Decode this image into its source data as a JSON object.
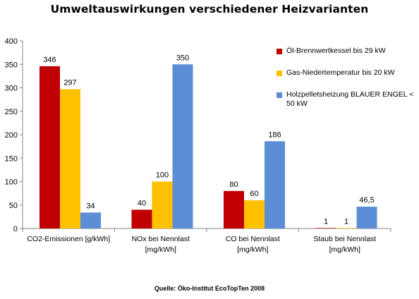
{
  "chart_data": {
    "type": "bar",
    "title": "Umweltauswirkungen verschiedener Heizvarianten",
    "categories": [
      [
        "CO2-Emissionen [g/kWh]"
      ],
      [
        "NOx bei Nennlast",
        "[mg/kWh]"
      ],
      [
        "CO bei Nennlast",
        "[mg/kWh]"
      ],
      [
        "Staub bei Nennlast",
        "[mg/kWh]"
      ]
    ],
    "series": [
      {
        "name": "Öl-Brennwertkessel bis 29 kW",
        "color": "#c00000",
        "values": [
          346,
          40,
          80,
          1
        ],
        "labels": [
          "346",
          "40",
          "80",
          "1"
        ]
      },
      {
        "name": "Gas-Niedertemperatur  bis 20 kW",
        "color": "#ffc000",
        "values": [
          297,
          100,
          60,
          1
        ],
        "labels": [
          "297",
          "100",
          "60",
          "1"
        ]
      },
      {
        "name": "Holzpelletsheizung BLAUER ENGEL < 50 kW",
        "color": "#5b8ed6",
        "values": [
          34,
          350,
          186,
          46.5
        ],
        "labels": [
          "34",
          "350",
          "186",
          "46,5"
        ]
      }
    ],
    "ylim": [
      0,
      400
    ],
    "yticks": [
      0,
      50,
      100,
      150,
      200,
      250,
      300,
      350,
      400
    ],
    "grid": false,
    "legend_position": "right"
  },
  "source": "Quelle: Öko-Institut EcoTopTen 2008"
}
